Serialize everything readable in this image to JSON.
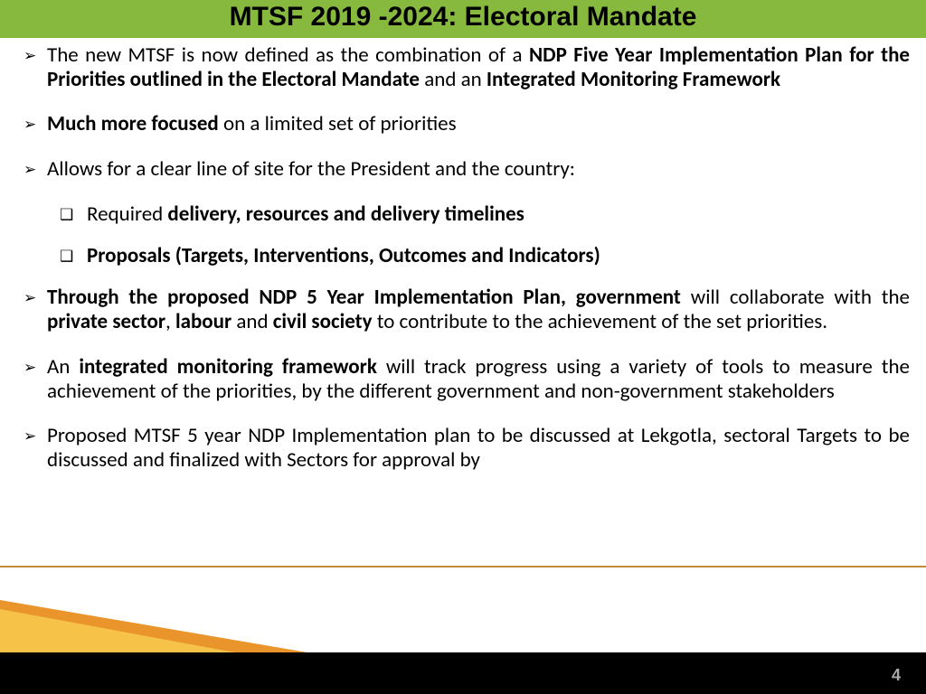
{
  "colors": {
    "header_bg": "#88b93f",
    "footer_bg": "#000000",
    "tri_orange": "#e88b1a",
    "tri_yellow": "#f6c248",
    "rule": "#c58a3a",
    "page_num": "#aaaaaa"
  },
  "title": "MTSF 2019 -2024: Electoral Mandate",
  "bullets": [
    {
      "segments": [
        {
          "t": "The new MTSF is now defined as the combination of a ",
          "b": false
        },
        {
          "t": "NDP Five Year Implementation Plan for the Priorities outlined in the Electoral Mandate",
          "b": true
        },
        {
          "t": " and an ",
          "b": false
        },
        {
          "t": "Integrated Monitoring Framework",
          "b": true
        }
      ]
    },
    {
      "segments": [
        {
          "t": "Much more focused",
          "b": true
        },
        {
          "t": " on a limited set of priorities",
          "b": false
        }
      ]
    },
    {
      "segments": [
        {
          "t": "Allows for a clear line of site for the President and the country:",
          "b": false
        }
      ],
      "subs": [
        {
          "segments": [
            {
              "t": "Required ",
              "b": false
            },
            {
              "t": "delivery, resources and delivery timelines",
              "b": true
            }
          ]
        },
        {
          "segments": [
            {
              "t": " Proposals (Targets, Interventions, Outcomes and Indicators)",
              "b": true
            }
          ]
        }
      ]
    },
    {
      "segments": [
        {
          "t": "Through the proposed NDP 5 Year Implementation Plan, government ",
          "b": true
        },
        {
          "t": "will collaborate with the ",
          "b": false
        },
        {
          "t": "private sector",
          "b": true
        },
        {
          "t": ", ",
          "b": false
        },
        {
          "t": "labour",
          "b": true
        },
        {
          "t": " and ",
          "b": false
        },
        {
          "t": "civil society",
          "b": true
        },
        {
          "t": " to contribute to the achievement of the set priorities.",
          "b": false
        }
      ]
    },
    {
      "segments": [
        {
          "t": "An ",
          "b": false
        },
        {
          "t": "integrated monitoring framework",
          "b": true
        },
        {
          "t": " will track progress using a variety of tools to measure the achievement of the priorities, by the different government and non-government stakeholders",
          "b": false
        }
      ]
    },
    {
      "segments": [
        {
          "t": "Proposed MTSF 5 year NDP Implementation plan to be discussed at Lekgotla, sectoral Targets to be discussed and finalized with Sectors for approval by",
          "b": false
        }
      ]
    }
  ],
  "page_number": "4",
  "markers": {
    "bullet": "➢",
    "sub": "❑"
  },
  "typography": {
    "title_pt": 30,
    "body_pt": 23
  }
}
